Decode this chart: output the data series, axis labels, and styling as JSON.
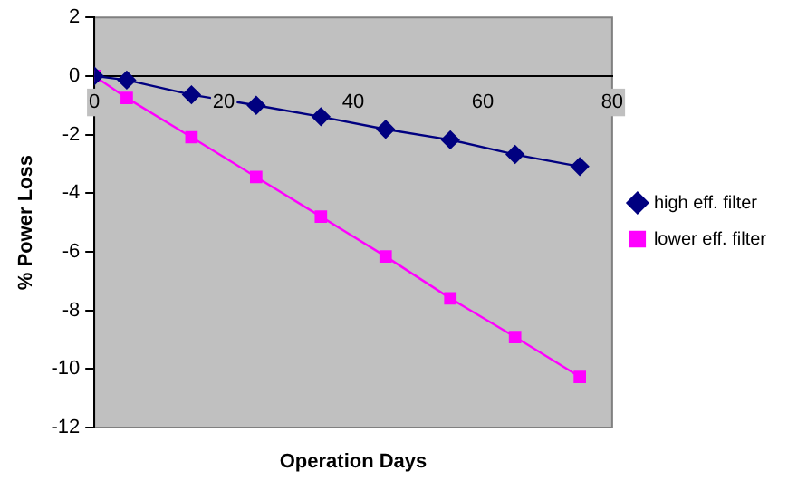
{
  "chart_data": {
    "type": "line",
    "xlabel": "Operation Days",
    "ylabel": "% Power Loss",
    "x": [
      0,
      5,
      15,
      25,
      35,
      45,
      55,
      65,
      75
    ],
    "series": [
      {
        "name": "high eff. filter",
        "color": "#000080",
        "marker": "diamond",
        "values": [
          0,
          -0.14,
          -0.64,
          -1.0,
          -1.39,
          -1.82,
          -2.18,
          -2.68,
          -3.09
        ]
      },
      {
        "name": "lower eff. filter",
        "color": "#ff00ff",
        "marker": "square",
        "values": [
          0,
          -0.75,
          -2.09,
          -3.45,
          -4.8,
          -6.16,
          -7.59,
          -8.91,
          -10.27
        ]
      }
    ],
    "xlim": [
      0,
      80
    ],
    "xticks": [
      0,
      20,
      40,
      60,
      80
    ],
    "ylim": [
      -12,
      2
    ],
    "yticks": [
      -12,
      -10,
      -8,
      -6,
      -4,
      -2,
      0,
      2
    ],
    "grid": false,
    "legend": "right",
    "line_style": "solid"
  }
}
